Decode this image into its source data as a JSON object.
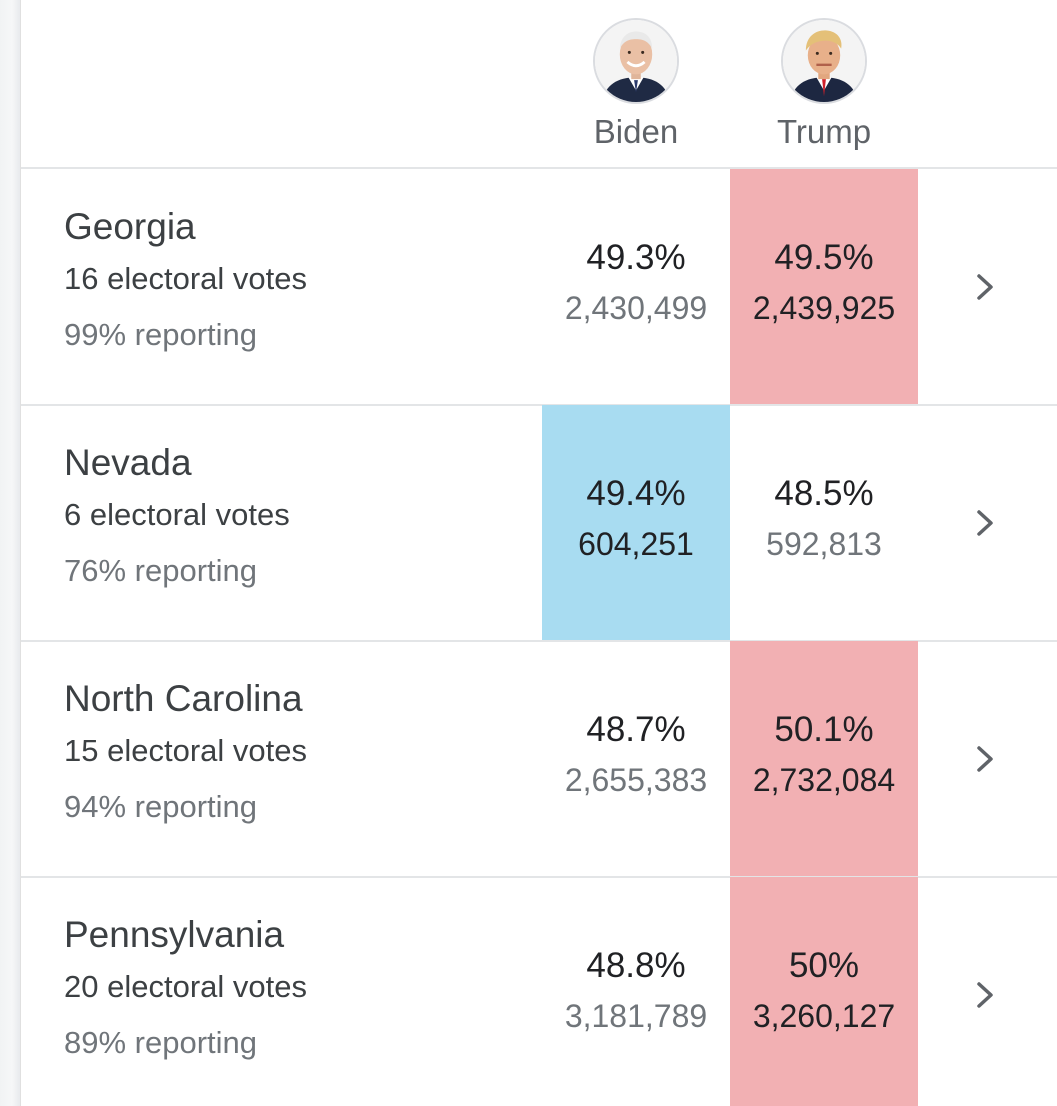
{
  "colors": {
    "republican_win": "#f2b0b3",
    "democrat_win": "#a8dcf1",
    "text_primary": "#202124",
    "text_secondary": "#70757a"
  },
  "candidates": [
    {
      "name": "Biden",
      "icon": "biden-avatar-icon"
    },
    {
      "name": "Trump",
      "icon": "trump-avatar-icon"
    }
  ],
  "states": [
    {
      "name": "Georgia",
      "electoral_votes": "16 electoral votes",
      "reporting": "99% reporting",
      "biden_pct": "49.3%",
      "biden_votes": "2,430,499",
      "trump_pct": "49.5%",
      "trump_votes": "2,439,925",
      "leader": "Trump"
    },
    {
      "name": "Nevada",
      "electoral_votes": "6 electoral votes",
      "reporting": "76% reporting",
      "biden_pct": "49.4%",
      "biden_votes": "604,251",
      "trump_pct": "48.5%",
      "trump_votes": "592,813",
      "leader": "Biden"
    },
    {
      "name": "North Carolina",
      "electoral_votes": "15 electoral votes",
      "reporting": "94% reporting",
      "biden_pct": "48.7%",
      "biden_votes": "2,655,383",
      "trump_pct": "50.1%",
      "trump_votes": "2,732,084",
      "leader": "Trump"
    },
    {
      "name": "Pennsylvania",
      "electoral_votes": "20 electoral votes",
      "reporting": "89% reporting",
      "biden_pct": "48.8%",
      "biden_votes": "3,181,789",
      "trump_pct": "50%",
      "trump_votes": "3,260,127",
      "leader": "Trump"
    }
  ]
}
